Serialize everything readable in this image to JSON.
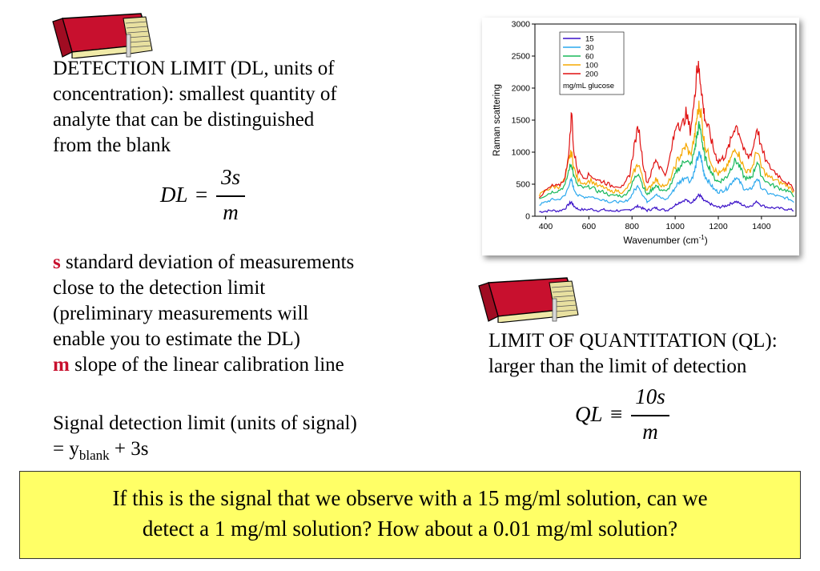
{
  "left": {
    "dl_heading": "DETECTION LIMIT (DL, units of",
    "dl_line2": "concentration): smallest quantity of",
    "dl_line3": "analyte that can be distinguished",
    "dl_line4": "from the blank",
    "dl_formula": {
      "lhs": "DL",
      "op": "=",
      "num": "3s",
      "den": "m"
    },
    "s_letter": "s",
    "s_line1": " standard deviation of measurements",
    "s_line2": "close to the detection limit",
    "s_line3": "(preliminary measurements will",
    "s_line4": "enable you to estimate the DL)",
    "m_letter": "m",
    "m_line": " slope of the linear calibration line",
    "signal_line1": "Signal detection limit (units of signal)",
    "signal_line2_a": "= y",
    "signal_sub": "blank",
    "signal_line2_b": " + 3s"
  },
  "right": {
    "ql_heading": "LIMIT OF QUANTITATION (QL):",
    "ql_line2": "larger than the limit of detection",
    "ql_formula": {
      "lhs": "QL",
      "op": "≡",
      "num": "10s",
      "den": "m"
    }
  },
  "question": {
    "line1": "If this is the signal that we observe with a 15 mg/ml solution, can we",
    "line2": "detect a 1 mg/ml solution?  How about a 0.01 mg/ml solution?"
  },
  "icons": [
    "book-icon",
    "book-icon"
  ],
  "chart_data": {
    "type": "line",
    "ylabel": "Raman scattering",
    "xlabel_main": "Wavenumber (cm",
    "xlabel_sup": "-1",
    "xlabel_end": ")",
    "xlim": [
      350,
      1560
    ],
    "ylim": [
      0,
      3000
    ],
    "xticks": [
      400,
      600,
      800,
      1000,
      1200,
      1400
    ],
    "yticks": [
      0,
      500,
      1000,
      1500,
      2000,
      2500,
      3000
    ],
    "legend_title": "mg/mL glucose",
    "legend_position": "top-left",
    "x": [
      370,
      400,
      430,
      460,
      490,
      510,
      520,
      530,
      550,
      580,
      610,
      640,
      670,
      700,
      730,
      760,
      790,
      810,
      830,
      850,
      870,
      890,
      910,
      930,
      960,
      990,
      1010,
      1030,
      1050,
      1070,
      1090,
      1100,
      1110,
      1120,
      1130,
      1140,
      1160,
      1180,
      1200,
      1220,
      1240,
      1260,
      1280,
      1300,
      1320,
      1340,
      1360,
      1380,
      1400,
      1430,
      1460,
      1490,
      1520,
      1550
    ],
    "series": [
      {
        "name": "15",
        "color": "#3a10c8",
        "values": [
          70,
          80,
          90,
          80,
          120,
          200,
          220,
          160,
          110,
          100,
          110,
          90,
          100,
          80,
          90,
          80,
          100,
          130,
          160,
          120,
          90,
          110,
          130,
          110,
          90,
          150,
          200,
          230,
          260,
          200,
          260,
          300,
          330,
          310,
          250,
          230,
          200,
          160,
          140,
          150,
          170,
          200,
          230,
          200,
          160,
          150,
          180,
          230,
          170,
          140,
          130,
          120,
          110,
          90
        ]
      },
      {
        "name": "30",
        "color": "#2aa8ee",
        "values": [
          180,
          220,
          260,
          260,
          320,
          520,
          560,
          430,
          320,
          300,
          310,
          270,
          260,
          220,
          230,
          210,
          280,
          400,
          480,
          330,
          230,
          280,
          340,
          290,
          260,
          390,
          500,
          560,
          630,
          540,
          700,
          860,
          960,
          920,
          720,
          620,
          520,
          420,
          380,
          400,
          430,
          520,
          610,
          530,
          430,
          400,
          460,
          600,
          440,
          360,
          330,
          300,
          280,
          230
        ]
      },
      {
        "name": "60",
        "color": "#18b85a",
        "values": [
          280,
          330,
          380,
          400,
          480,
          760,
          820,
          620,
          470,
          440,
          460,
          390,
          380,
          320,
          330,
          310,
          420,
          580,
          690,
          480,
          330,
          410,
          480,
          420,
          380,
          560,
          720,
          800,
          900,
          780,
          1010,
          1250,
          1400,
          1330,
          1040,
          890,
          760,
          600,
          540,
          570,
          620,
          760,
          880,
          760,
          610,
          570,
          650,
          860,
          630,
          520,
          470,
          430,
          400,
          320
        ]
      },
      {
        "name": "100",
        "color": "#f6a800",
        "values": [
          330,
          400,
          460,
          460,
          580,
          920,
          1000,
          760,
          560,
          520,
          560,
          470,
          450,
          380,
          400,
          370,
          500,
          700,
          830,
          580,
          400,
          490,
          580,
          500,
          460,
          680,
          870,
          980,
          1100,
          950,
          1230,
          1520,
          1710,
          1610,
          1270,
          1080,
          920,
          740,
          660,
          690,
          760,
          920,
          1070,
          930,
          740,
          690,
          790,
          1040,
          760,
          620,
          570,
          520,
          480,
          380
        ]
      },
      {
        "name": "200",
        "color": "#e01010",
        "values": [
          300,
          400,
          470,
          470,
          600,
          1100,
          1650,
          1000,
          700,
          620,
          640,
          560,
          540,
          480,
          480,
          450,
          660,
          1100,
          1400,
          860,
          520,
          680,
          900,
          760,
          660,
          1160,
          1500,
          1380,
          1600,
          1350,
          1800,
          2350,
          2280,
          2060,
          1700,
          1500,
          1300,
          1020,
          860,
          900,
          1000,
          1200,
          1440,
          1280,
          1000,
          920,
          1050,
          1400,
          1050,
          800,
          700,
          600,
          520,
          420
        ]
      }
    ]
  }
}
